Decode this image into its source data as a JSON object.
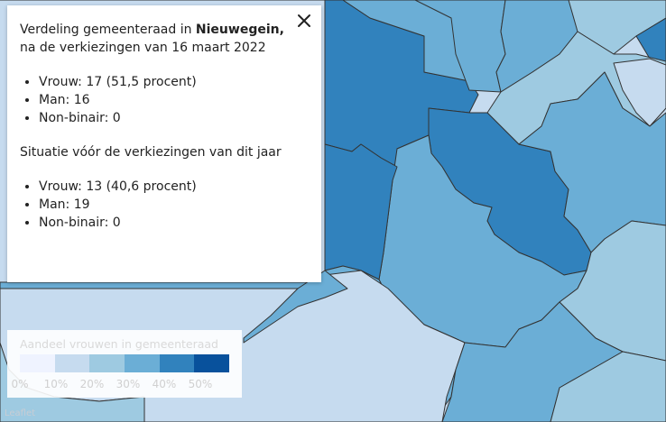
{
  "map": {
    "colors": {
      "c1": "#eff3ff",
      "c2": "#c6dbef",
      "c3": "#9ecae1",
      "c4": "#6baed6",
      "c5": "#3182bd",
      "c6": "#08519c",
      "border": "#333333"
    }
  },
  "popup": {
    "close_icon": "close-icon",
    "intro_prefix": "Verdeling gemeenteraad in ",
    "municipality": "Nieuwegein,",
    "intro_suffix": " na de verkiezingen van 16 maart 2022",
    "after": [
      "Vrouw: 17 (51,5 procent)",
      "Man: 16",
      "Non-binair: 0"
    ],
    "before_heading": "Situatie vóór de verkiezingen van dit jaar",
    "before": [
      "Vrouw: 13 (40,6 procent)",
      "Man: 19",
      "Non-binair: 0"
    ]
  },
  "legend": {
    "title": "Aandeel vrouwen in gemeenteraad",
    "colors": [
      "#eff3ff",
      "#c6dbef",
      "#9ecae1",
      "#6baed6",
      "#3182bd",
      "#08519c"
    ],
    "ticks": [
      "0%",
      "10%",
      "20%",
      "30%",
      "40%",
      "50%"
    ]
  },
  "attribution": "Leaflet"
}
